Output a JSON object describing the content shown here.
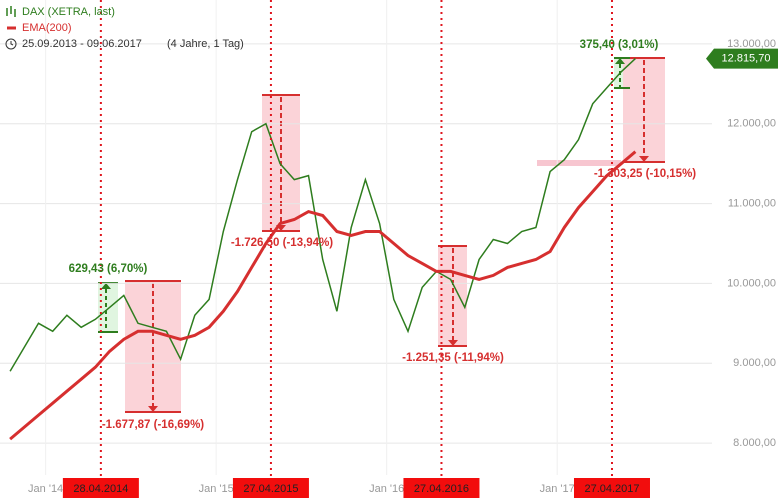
{
  "chart_data": {
    "type": "line",
    "period": "25.09.2013 - 09.06.2017",
    "span": "(4 Jahre, 1 Tag)",
    "x": [
      "2013-10",
      "2013-11",
      "2013-12",
      "2014-01",
      "2014-02",
      "2014-03",
      "2014-04",
      "2014-05",
      "2014-06",
      "2014-07",
      "2014-08",
      "2014-09",
      "2014-10",
      "2014-11",
      "2014-12",
      "2015-01",
      "2015-02",
      "2015-03",
      "2015-04",
      "2015-05",
      "2015-06",
      "2015-07",
      "2015-08",
      "2015-09",
      "2015-10",
      "2015-11",
      "2015-12",
      "2016-01",
      "2016-02",
      "2016-03",
      "2016-04",
      "2016-05",
      "2016-06",
      "2016-07",
      "2016-08",
      "2016-09",
      "2016-10",
      "2016-11",
      "2016-12",
      "2017-01",
      "2017-02",
      "2017-03",
      "2017-04",
      "2017-05",
      "2017-06"
    ],
    "series": [
      {
        "name": "DAX (XETRA, last)",
        "color": "#2e7d1e",
        "values": [
          8900,
          9200,
          9500,
          9400,
          9600,
          9450,
          9550,
          9700,
          9850,
          9500,
          9450,
          9400,
          9050,
          9600,
          9800,
          10650,
          11300,
          11900,
          12000,
          11500,
          11300,
          11350,
          10300,
          9650,
          10700,
          11300,
          10750,
          9800,
          9400,
          9950,
          10150,
          10050,
          9700,
          10300,
          10550,
          10500,
          10650,
          10700,
          11400,
          11550,
          11800,
          12250,
          12450,
          12650,
          12815.7
        ]
      },
      {
        "name": "EMA(200)",
        "color": "#d62f2f",
        "values": [
          8050,
          8200,
          8350,
          8500,
          8650,
          8800,
          8950,
          9150,
          9300,
          9400,
          9400,
          9350,
          9300,
          9350,
          9450,
          9650,
          9900,
          10200,
          10500,
          10750,
          10800,
          10900,
          10850,
          10650,
          10600,
          10650,
          10650,
          10500,
          10350,
          10250,
          10150,
          10150,
          10100,
          10050,
          10100,
          10200,
          10250,
          10300,
          10400,
          10700,
          10950,
          11150,
          11350,
          11500,
          11650
        ]
      }
    ],
    "ylim": [
      7600,
      13550
    ],
    "yticks": [
      {
        "value": 8000,
        "label": "8.000,00"
      },
      {
        "value": 9000,
        "label": "9.000,00"
      },
      {
        "value": 10000,
        "label": "10.000,00"
      },
      {
        "value": 11000,
        "label": "11.000,00"
      },
      {
        "value": 12000,
        "label": "12.000,00"
      },
      {
        "value": 13000,
        "label": "13.000,00"
      }
    ],
    "xticks": [
      {
        "value": "2014-01",
        "label": "Jan '14"
      },
      {
        "value": "2015-01",
        "label": "Jan '15"
      },
      {
        "value": "2016-01",
        "label": "Jan '16"
      },
      {
        "value": "2017-01",
        "label": "Jan '17"
      }
    ],
    "last_value": {
      "value": 12815.7,
      "label": "12.815,70"
    },
    "markers": [
      "28.04.2014",
      "27.04.2015",
      "27.04.2016",
      "27.04.2017"
    ],
    "annotations": [
      "629,43 (6,70%)",
      "-1.677,87 (-16,69%)",
      "-1.726,50 (-13,94%)",
      "-1.251,35 (-11,94%)",
      "375,40 (3,01%)",
      "-1.303,25 (-10,15%)"
    ]
  }
}
